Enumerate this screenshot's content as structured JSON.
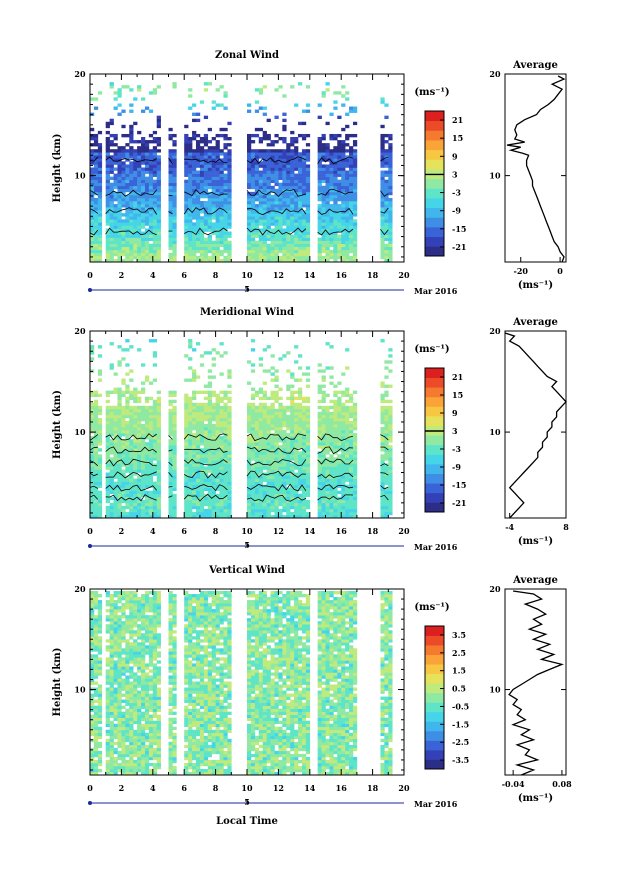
{
  "chart_data": [
    {
      "type": "heatmap",
      "title": "Zonal Wind",
      "ylabel": "Height (km)",
      "y_ticks": [
        "20",
        "10"
      ],
      "ylim": [
        1.5,
        20
      ],
      "x_ticks": [
        "0",
        "2",
        "4",
        "6",
        "8",
        "10",
        "12",
        "14",
        "16",
        "18",
        "20"
      ],
      "xlim": [
        0,
        20
      ],
      "date_axis": {
        "day": "5",
        "month_label": "Mar 2016"
      },
      "gaps_hours": [
        [
          0.7,
          1.0
        ],
        [
          4.4,
          4.8
        ],
        [
          5.3,
          5.8
        ],
        [
          9.0,
          9.3
        ],
        [
          9.5,
          9.8
        ],
        [
          13.9,
          14.5
        ],
        [
          17.0,
          18.3
        ],
        [
          19.2,
          20
        ]
      ],
      "colorbar": {
        "unit": "(ms⁻¹)",
        "ticks": [
          "21",
          "15",
          "9",
          "3",
          "-3",
          "-9",
          "-15",
          "-21"
        ],
        "range": [
          -24,
          24
        ],
        "highlight_tick": "3"
      },
      "profile": {
        "title": "Average",
        "xlabel": "(ms⁻¹)",
        "x_ticks": [
          "-20",
          "0"
        ],
        "xlim": [
          -28,
          3
        ],
        "y_ticks": [
          "20",
          "10"
        ],
        "height_km": [
          1.5,
          2,
          2.5,
          3,
          3.5,
          4,
          4.5,
          5,
          5.5,
          6,
          6.5,
          7,
          7.5,
          8,
          8.5,
          9,
          9.5,
          10,
          10.5,
          11,
          11.5,
          12,
          12.2,
          12.5,
          12.8,
          13,
          13.3,
          13.6,
          14,
          14.5,
          15,
          15.5,
          16,
          16.5,
          17,
          17.5,
          18,
          18.5,
          19,
          19.5,
          19.8
        ],
        "wind_ms": [
          1,
          2,
          0,
          -1,
          -3,
          -4,
          -5,
          -6,
          -7,
          -8,
          -9,
          -10,
          -11,
          -12,
          -13,
          -14,
          -14,
          -15,
          -16,
          -17,
          -17,
          -16,
          -19,
          -25,
          -20,
          -27,
          -18,
          -23,
          -22,
          -23,
          -22,
          -18,
          -12,
          -10,
          -6,
          -3,
          -1,
          1,
          -4,
          2,
          -1
        ]
      }
    },
    {
      "type": "heatmap",
      "title": "Meridional Wind",
      "ylabel": "Height (km)",
      "y_ticks": [
        "20",
        "10"
      ],
      "ylim": [
        1.5,
        20
      ],
      "x_ticks": [
        "0",
        "2",
        "4",
        "6",
        "8",
        "10",
        "12",
        "14",
        "16",
        "18",
        "20"
      ],
      "xlim": [
        0,
        20
      ],
      "date_axis": {
        "day": "5",
        "month_label": "Mar 2016"
      },
      "gaps_hours": [
        [
          0.7,
          1.0
        ],
        [
          4.4,
          4.8
        ],
        [
          5.3,
          5.8
        ],
        [
          9.0,
          9.3
        ],
        [
          9.5,
          9.8
        ],
        [
          13.9,
          14.5
        ],
        [
          17.0,
          18.3
        ],
        [
          19.2,
          20
        ]
      ],
      "colorbar": {
        "unit": "(ms⁻¹)",
        "ticks": [
          "21",
          "15",
          "9",
          "3",
          "-3",
          "-9",
          "-15",
          "-21"
        ],
        "range": [
          -24,
          24
        ],
        "highlight_tick": "3"
      },
      "profile": {
        "title": "Average",
        "xlabel": "(ms⁻¹)",
        "x_ticks": [
          "-4",
          "8"
        ],
        "xlim": [
          -5,
          8
        ],
        "y_ticks": [
          "20",
          "10"
        ],
        "height_km": [
          1.5,
          2,
          2.5,
          3,
          3.5,
          4,
          4.5,
          5,
          5.5,
          6,
          6.5,
          7,
          7.5,
          8,
          8.5,
          9,
          9.5,
          10,
          10.5,
          11,
          11.5,
          12,
          12.5,
          13,
          13.5,
          14,
          14.5,
          15,
          15.5,
          16,
          16.5,
          17,
          17.5,
          18,
          18.5,
          19,
          19.5,
          19.8
        ],
        "wind_ms": [
          -4,
          -3,
          -2,
          -1,
          -2,
          -3,
          -4,
          -3,
          -2,
          -1,
          0,
          1,
          2,
          2,
          3,
          3,
          4,
          4,
          5,
          5,
          6,
          6,
          7,
          8,
          7,
          6,
          5,
          6,
          4,
          3,
          2,
          1,
          0,
          -1,
          -2,
          -4,
          -3,
          -5
        ]
      }
    },
    {
      "type": "heatmap",
      "title": "Vertical Wind",
      "ylabel": "Height (km)",
      "y_ticks": [
        "20",
        "10"
      ],
      "ylim": [
        1.5,
        20
      ],
      "x_ticks": [
        "0",
        "2",
        "4",
        "6",
        "8",
        "10",
        "12",
        "14",
        "16",
        "18",
        "20"
      ],
      "xlim": [
        0,
        20
      ],
      "date_axis": {
        "day": "5",
        "month_label": "Mar 2016"
      },
      "xlabel": "Local Time",
      "gaps_hours": [
        [
          0.7,
          1.0
        ],
        [
          4.4,
          4.8
        ],
        [
          5.3,
          5.8
        ],
        [
          9.0,
          9.3
        ],
        [
          9.5,
          9.8
        ],
        [
          13.9,
          14.5
        ],
        [
          17.0,
          18.3
        ],
        [
          19.2,
          20
        ]
      ],
      "colorbar": {
        "unit": "(ms⁻¹)",
        "ticks": [
          "3.5",
          "2.5",
          "1.5",
          "0.5",
          "-0.5",
          "-1.5",
          "-2.5",
          "-3.5"
        ],
        "range": [
          -4,
          4
        ]
      },
      "profile": {
        "title": "Average",
        "xlabel": "(ms⁻¹)",
        "x_ticks": [
          "-0.04",
          "0.08"
        ],
        "xlim": [
          -0.06,
          0.09
        ],
        "y_ticks": [
          "20",
          "10"
        ],
        "height_km": [
          1.5,
          2,
          2.5,
          3,
          3.5,
          4,
          4.5,
          5,
          5.5,
          6,
          6.5,
          7,
          7.5,
          8,
          8.5,
          9,
          9.5,
          10,
          10.5,
          11,
          11.5,
          12,
          12.5,
          13,
          13.5,
          14,
          14.5,
          15,
          15.5,
          16,
          16.5,
          17,
          17.5,
          18,
          18.5,
          19,
          19.5,
          19.8
        ],
        "wind_ms": [
          -0.02,
          0.01,
          -0.03,
          0.02,
          -0.01,
          0.0,
          -0.03,
          0.01,
          -0.02,
          0.0,
          -0.04,
          -0.01,
          -0.03,
          -0.02,
          -0.04,
          -0.03,
          -0.05,
          -0.04,
          -0.02,
          0.0,
          0.02,
          0.05,
          0.08,
          0.03,
          0.06,
          0.02,
          0.05,
          0.01,
          0.04,
          0.0,
          0.03,
          0.01,
          0.04,
          0.02,
          -0.01,
          0.03,
          0.01,
          -0.04
        ]
      }
    }
  ]
}
